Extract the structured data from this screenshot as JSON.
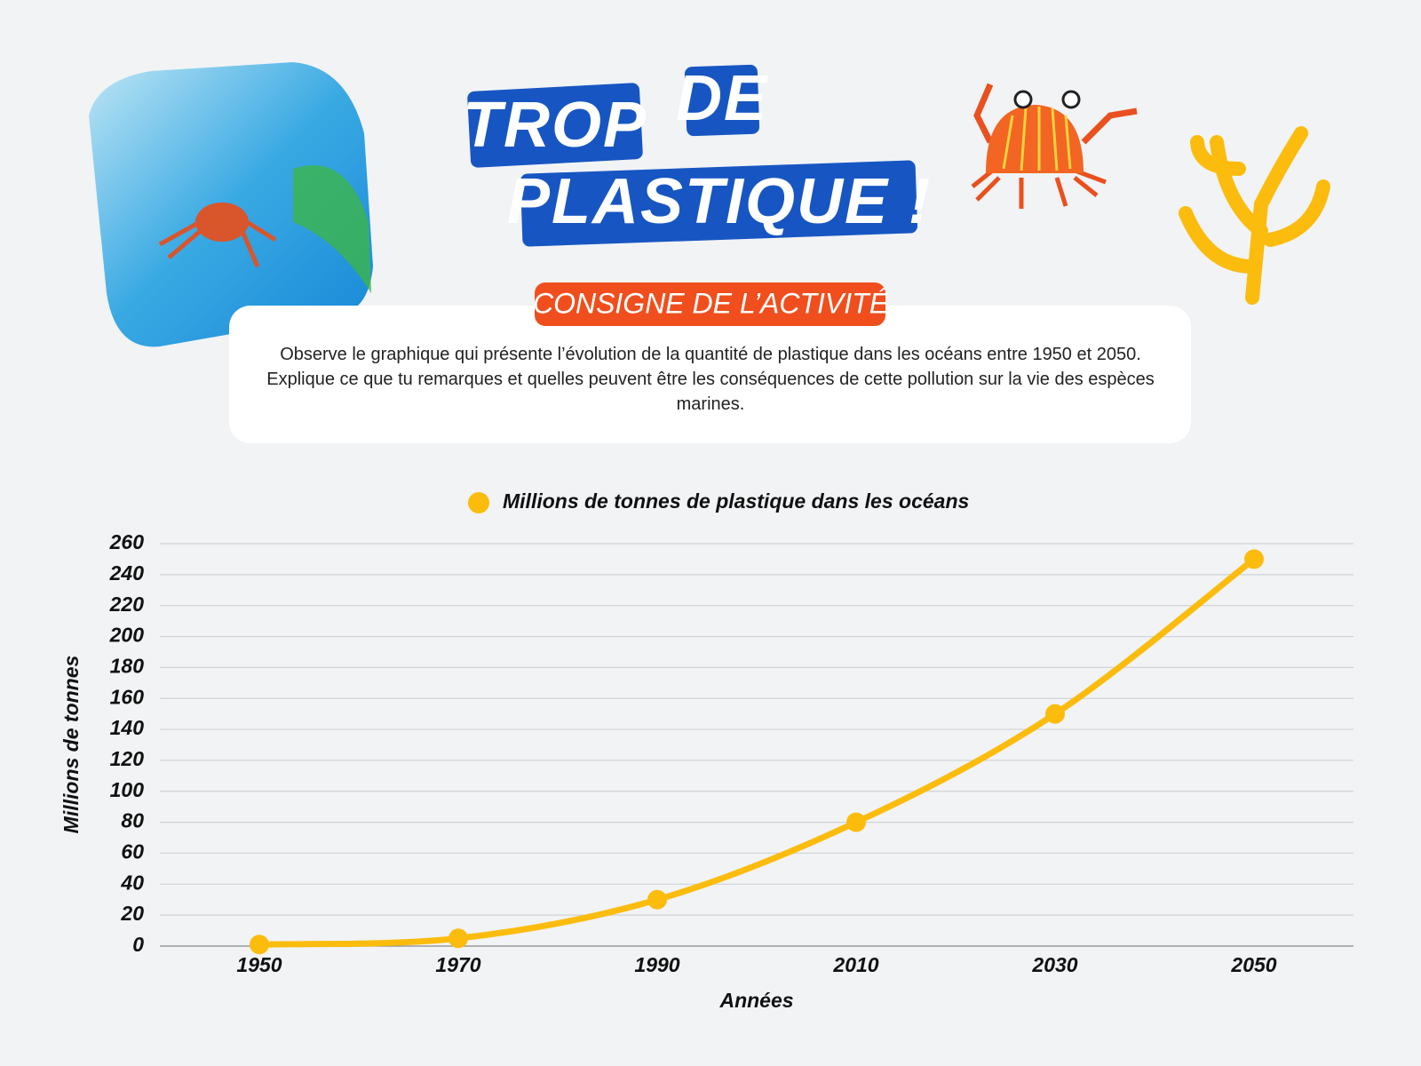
{
  "header": {
    "title_lines": [
      "TROP",
      "DE",
      "PLASTIQUE !"
    ]
  },
  "instructions": {
    "badge": "CONSIGNE DE L’ACTIVITÉ",
    "text": "Observe le graphique qui présente l’évolution de la quantité de plastique dans les océans entre 1950 et 2050. Explique ce que tu remarques et quelles peuvent être les conséquences de cette pollution sur la vie des espèces marines."
  },
  "chart_data": {
    "type": "line",
    "categories": [
      "1950",
      "1970",
      "1990",
      "2010",
      "2030",
      "2050"
    ],
    "series": [
      {
        "name": "Millions de tonnes de plastique dans les océans",
        "color": "#fbbc0e",
        "values": [
          1,
          5,
          30,
          80,
          150,
          250
        ]
      }
    ],
    "x_label": "Années",
    "y_label": "Millions de tonnes",
    "ylim": [
      0,
      260
    ],
    "yticks": [
      0,
      20,
      40,
      60,
      80,
      100,
      120,
      140,
      160,
      180,
      200,
      220,
      240,
      260
    ],
    "grid": true,
    "legend": "top"
  }
}
